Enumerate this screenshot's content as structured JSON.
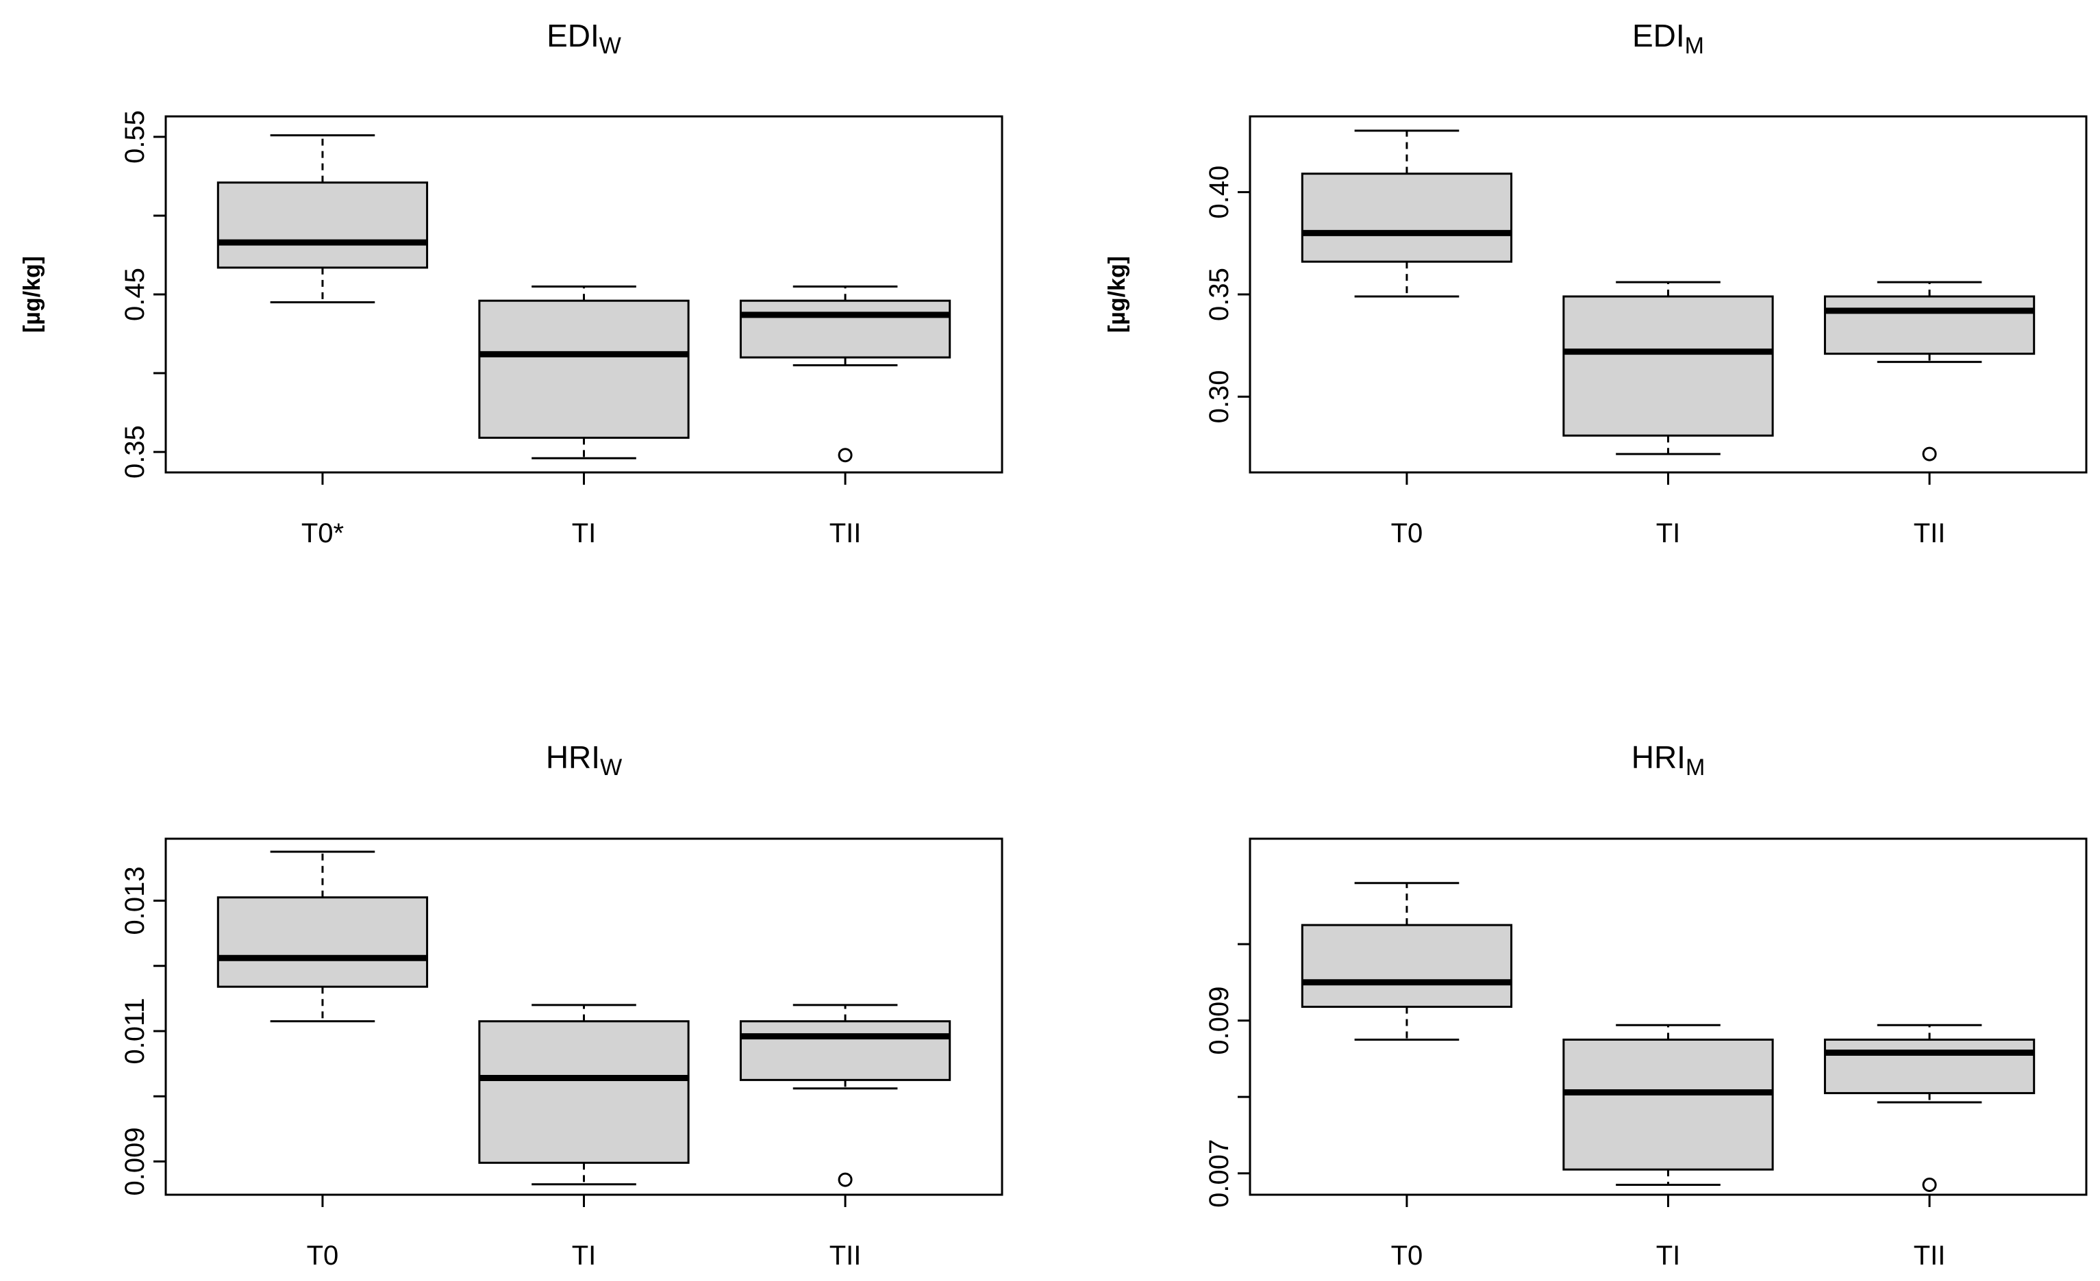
{
  "chart_data": [
    {
      "type": "boxplot",
      "title": "EDI",
      "title_subscript": "W",
      "ylabel": "[µg/kg]",
      "ylim": [
        0.337,
        0.563
      ],
      "yticks": [
        0.35,
        0.4,
        0.45,
        0.5,
        0.55
      ],
      "ytick_labels": [
        "0.35",
        "",
        "0.45",
        "",
        "0.55"
      ],
      "categories": [
        "T0*",
        "TI",
        "TII"
      ],
      "boxes": [
        {
          "whisker_low": 0.445,
          "q1": 0.467,
          "median": 0.483,
          "q3": 0.521,
          "whisker_high": 0.551,
          "outliers": []
        },
        {
          "whisker_low": 0.346,
          "q1": 0.359,
          "median": 0.412,
          "q3": 0.446,
          "whisker_high": 0.455,
          "outliers": []
        },
        {
          "whisker_low": 0.405,
          "q1": 0.41,
          "median": 0.437,
          "q3": 0.446,
          "whisker_high": 0.455,
          "outliers": [
            0.348
          ]
        }
      ]
    },
    {
      "type": "boxplot",
      "title": "EDI",
      "title_subscript": "M",
      "ylabel": "[µg/kg]",
      "ylim": [
        0.263,
        0.437
      ],
      "yticks": [
        0.3,
        0.35,
        0.4
      ],
      "ytick_labels": [
        "0.30",
        "0.35",
        "0.40"
      ],
      "categories": [
        "T0",
        "TI",
        "TII"
      ],
      "boxes": [
        {
          "whisker_low": 0.349,
          "q1": 0.366,
          "median": 0.38,
          "q3": 0.409,
          "whisker_high": 0.43,
          "outliers": []
        },
        {
          "whisker_low": 0.272,
          "q1": 0.281,
          "median": 0.322,
          "q3": 0.349,
          "whisker_high": 0.356,
          "outliers": []
        },
        {
          "whisker_low": 0.317,
          "q1": 0.321,
          "median": 0.342,
          "q3": 0.349,
          "whisker_high": 0.356,
          "outliers": [
            0.272
          ]
        }
      ]
    },
    {
      "type": "boxplot",
      "title": "HRI",
      "title_subscript": "W",
      "ylabel": "",
      "ylim": [
        0.00849,
        0.01395
      ],
      "yticks": [
        0.009,
        0.01,
        0.011,
        0.012,
        0.013
      ],
      "ytick_labels": [
        "0.009",
        "",
        "0.011",
        "",
        "0.013"
      ],
      "categories": [
        "T0",
        "TI",
        "TII"
      ],
      "boxes": [
        {
          "whisker_low": 0.01115,
          "q1": 0.01168,
          "median": 0.01212,
          "q3": 0.01305,
          "whisker_high": 0.01375,
          "outliers": []
        },
        {
          "whisker_low": 0.00865,
          "q1": 0.00898,
          "median": 0.01028,
          "q3": 0.01115,
          "whisker_high": 0.0114,
          "outliers": []
        },
        {
          "whisker_low": 0.01012,
          "q1": 0.01025,
          "median": 0.01092,
          "q3": 0.01115,
          "whisker_high": 0.0114,
          "outliers": [
            0.00872
          ]
        }
      ]
    },
    {
      "type": "boxplot",
      "title": "HRI",
      "title_subscript": "M",
      "ylabel": "",
      "ylim": [
        0.00672,
        0.01138
      ],
      "yticks": [
        0.007,
        0.008,
        0.009,
        0.01
      ],
      "ytick_labels": [
        "0.007",
        "",
        "0.009",
        ""
      ],
      "categories": [
        "T0",
        "TI",
        "TII"
      ],
      "boxes": [
        {
          "whisker_low": 0.00875,
          "q1": 0.00918,
          "median": 0.0095,
          "q3": 0.01025,
          "whisker_high": 0.0108,
          "outliers": []
        },
        {
          "whisker_low": 0.00685,
          "q1": 0.00705,
          "median": 0.00806,
          "q3": 0.00875,
          "whisker_high": 0.00894,
          "outliers": []
        },
        {
          "whisker_low": 0.00793,
          "q1": 0.00805,
          "median": 0.00858,
          "q3": 0.00875,
          "whisker_high": 0.00894,
          "outliers": [
            0.00685
          ]
        }
      ]
    }
  ]
}
